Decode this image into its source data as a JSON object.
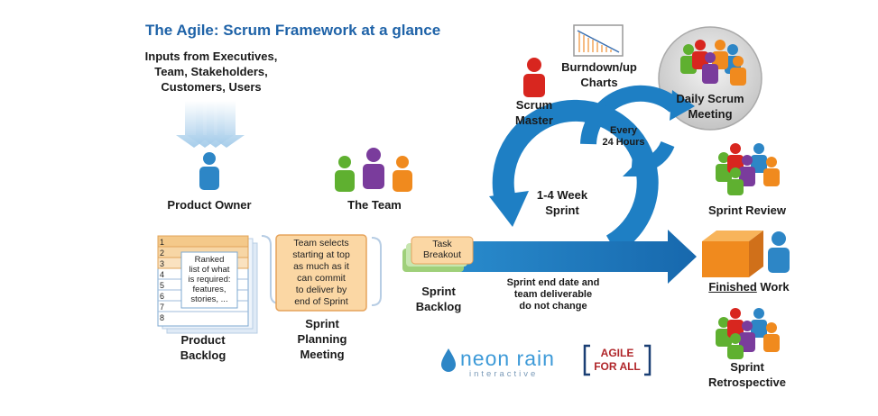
{
  "title": "The Agile: Scrum Framework at a glance",
  "inputs": [
    "Inputs from Executives,",
    "Team, Stakeholders,",
    "Customers, Users"
  ],
  "product_owner": "Product Owner",
  "the_team": "The Team",
  "scrum_master": [
    "Scrum",
    "Master"
  ],
  "burndown": [
    "Burndown/up",
    "Charts"
  ],
  "daily_scrum": [
    "Daily Scrum",
    "Meeting"
  ],
  "every_24": [
    "Every",
    "24 Hours"
  ],
  "sprint_length": [
    "1-4 Week",
    "Sprint"
  ],
  "sprint_review": "Sprint Review",
  "finished_work": {
    "emph": "Finished",
    "rest": " Work"
  },
  "sprint_retro": [
    "Sprint",
    "Retrospective"
  ],
  "backlog": {
    "numbers": [
      "1",
      "2",
      "3",
      "4",
      "5",
      "6",
      "7",
      "8"
    ],
    "note": [
      "Ranked",
      "list of what",
      "is required:",
      "features,",
      "stories, ..."
    ],
    "label": [
      "Product",
      "Backlog"
    ]
  },
  "planning": {
    "note": [
      "Team selects",
      "starting at top",
      "as much as it",
      "can commit",
      "to deliver by",
      "end of Sprint"
    ],
    "label": [
      "Sprint",
      "Planning",
      "Meeting"
    ]
  },
  "sprint_backlog": {
    "card": [
      "Task",
      "Breakout"
    ],
    "label": [
      "Sprint",
      "Backlog"
    ]
  },
  "sprint_end_note": [
    "Sprint end date and",
    "team deliverable",
    "do not change"
  ],
  "logos": {
    "neon_main": "neon rain",
    "neon_sub": "interactive",
    "agile_top": "AGILE",
    "agile_bottom": "FOR ALL"
  },
  "colors": {
    "title_blue": "#1f63a8",
    "arrow_blue": "#1e7fc4",
    "person_blue": "#2d86c6",
    "person_green": "#5fb030",
    "person_purple": "#7a3c9c",
    "person_orange": "#f08a1e",
    "person_red": "#d8261f",
    "note_orange": "#fbd7a4"
  }
}
